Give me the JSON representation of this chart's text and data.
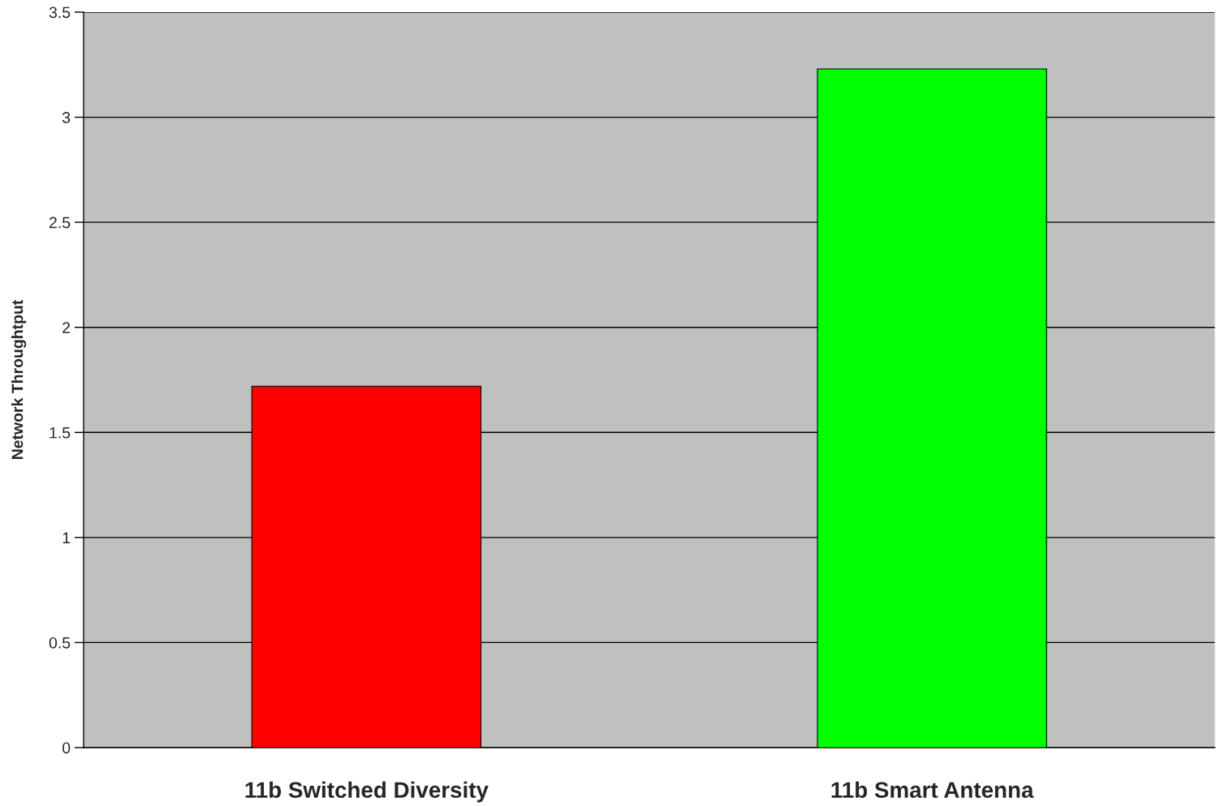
{
  "chart_data": {
    "type": "bar",
    "ylabel": "Network Throughtput",
    "categories": [
      "11b Switched Diversity",
      "11b Smart Antenna"
    ],
    "values": [
      1.72,
      3.23
    ],
    "colors": [
      "#ff0000",
      "#00ff00"
    ],
    "ylim": [
      0,
      3.5
    ],
    "yticks": [
      0,
      0.5,
      1,
      1.5,
      2,
      2.5,
      3,
      3.5
    ],
    "grid": "y",
    "legend": false
  }
}
